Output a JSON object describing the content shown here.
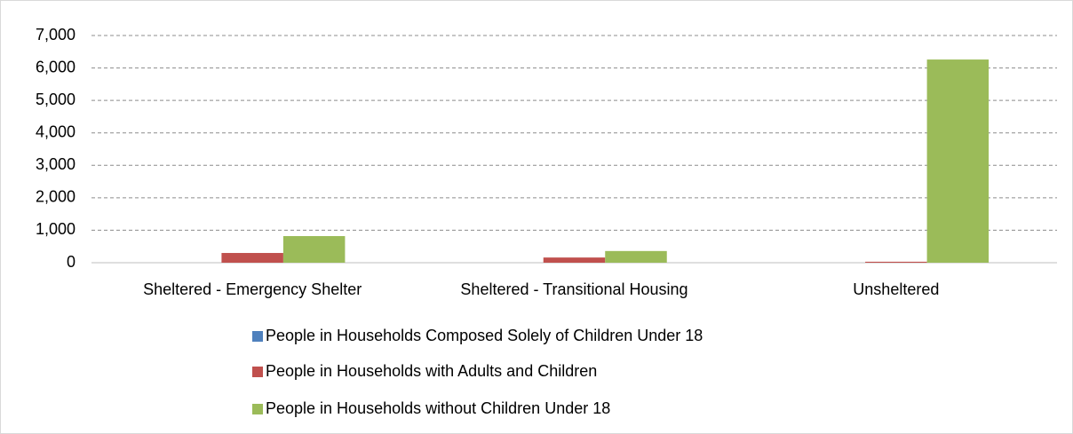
{
  "chart_data": {
    "type": "bar",
    "categories": [
      "Sheltered - Emergency Shelter",
      "Sheltered - Transitional Housing",
      "Unsheltered"
    ],
    "series": [
      {
        "name": "People in Households Composed Solely of Children Under 18",
        "color": "#4f81bd",
        "values": [
          0,
          0,
          0
        ]
      },
      {
        "name": "People in Households with Adults and Children",
        "color": "#c0504d",
        "values": [
          300,
          160,
          30
        ]
      },
      {
        "name": "People in Households without Children Under 18",
        "color": "#9bbb59",
        "values": [
          820,
          360,
          6260
        ]
      }
    ],
    "ylim": [
      0,
      7000
    ],
    "yticks": [
      0,
      {
        "value": 1000,
        "label": "1,000"
      },
      {
        "value": 2000,
        "label": "2,000"
      },
      {
        "value": 3000,
        "label": "3,000"
      },
      {
        "value": 4000,
        "label": "4,000"
      },
      {
        "value": 5000,
        "label": "5,000"
      },
      {
        "value": 6000,
        "label": "6,000"
      },
      {
        "value": 7000,
        "label": "7,000"
      }
    ],
    "grid": true,
    "legend": "bottom"
  }
}
